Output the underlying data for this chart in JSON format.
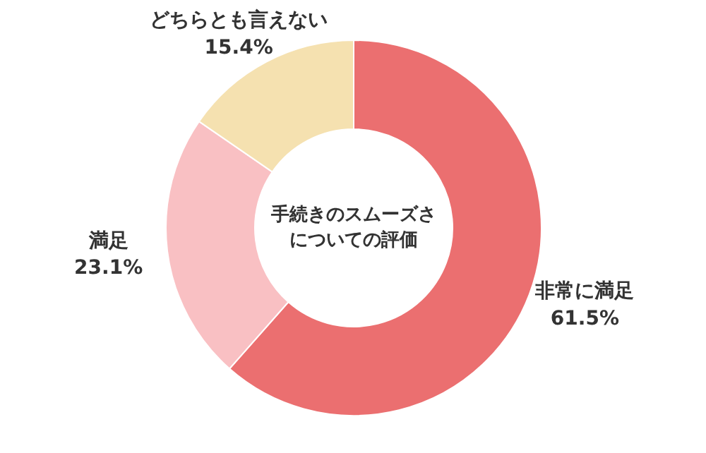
{
  "chart_data": {
    "type": "donut",
    "title": "手続きのスムーズさについての評価",
    "categories": [
      "非常に満足",
      "満足",
      "どちらとも言えない"
    ],
    "values": [
      61.5,
      23.1,
      15.4
    ],
    "colors": [
      "#eb6f70",
      "#f9c0c3",
      "#f5e1b0"
    ],
    "value_labels": [
      "61.5%",
      "23.1%",
      "15.4%"
    ]
  }
}
